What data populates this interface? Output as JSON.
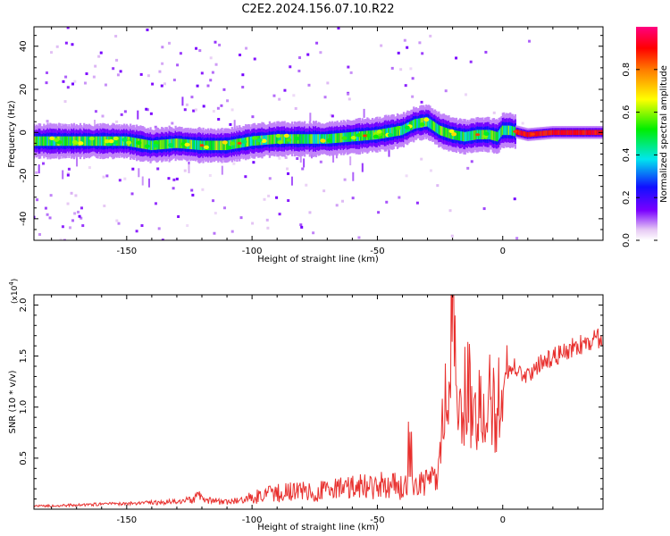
{
  "title": "C2E2.2024.156.07.10.R22",
  "colors": {
    "snr_line": "#e8302e",
    "axis": "#000000",
    "background": "#ffffff"
  },
  "chart_data": [
    {
      "type": "heatmap",
      "xlabel": "Height of straight line (km)",
      "ylabel": "Frequency (Hz)",
      "xlim": [
        -187,
        40
      ],
      "ylim": [
        -50,
        49
      ],
      "x_ticks": [
        -150,
        -100,
        -50,
        0
      ],
      "x_tick_labels": [
        "-150",
        "-100",
        "-50",
        "0"
      ],
      "y_ticks": [
        -40,
        -20,
        0,
        20,
        40
      ],
      "y_tick_labels": [
        "-40",
        "-20",
        "0",
        "20",
        "40"
      ],
      "colorbar": {
        "label": "Normalized spectral amplitude",
        "range": [
          0,
          1
        ],
        "ticks": [
          0.0,
          0.2,
          0.4,
          0.6,
          0.8
        ],
        "tick_labels": [
          "0.0",
          "0.2",
          "0.4",
          "0.6",
          "0.8"
        ],
        "colormap": "rainbow (white-purple-blue-cyan-green-yellow-red-magenta)"
      },
      "ridge": {
        "x": [
          -187,
          -170,
          -150,
          -140,
          -130,
          -120,
          -110,
          -100,
          -90,
          -80,
          -70,
          -60,
          -50,
          -40,
          -35,
          -30,
          -25,
          -20,
          -15,
          -10,
          -5,
          -2,
          0,
          3,
          10,
          20,
          30,
          40
        ],
        "y": [
          -4,
          -4,
          -4,
          -6,
          -5,
          -6,
          -6,
          -4,
          -3,
          -3,
          -3,
          -2,
          -1,
          1,
          4,
          5,
          1,
          -1,
          -2,
          -1,
          -1,
          -2,
          1,
          1,
          -1,
          0,
          0,
          0
        ]
      }
    },
    {
      "type": "line",
      "xlabel": "Height of straight line (km)",
      "ylabel": "SNR (10 * v/v)",
      "y_multiplier": "(x10",
      "y_multiplier_exp": "4",
      "y_multiplier_close": ")",
      "xlim": [
        -187,
        40
      ],
      "ylim": [
        0,
        21000
      ],
      "x_ticks": [
        -150,
        -100,
        -50,
        0
      ],
      "x_tick_labels": [
        "-150",
        "-100",
        "-50",
        "0"
      ],
      "y_ticks": [
        5000,
        10000,
        15000,
        20000
      ],
      "y_tick_labels": [
        "0.5",
        "1.0",
        "1.5",
        "2.0"
      ],
      "series": [
        {
          "x": [
            -187,
            -175,
            -165,
            -155,
            -145,
            -135,
            -128,
            -124,
            -121,
            -118,
            -110,
            -104,
            -100,
            -95,
            -89,
            -85,
            -80,
            -75,
            -70,
            -66,
            -62,
            -58,
            -55,
            -50,
            -45,
            -40,
            -35,
            -30,
            -26,
            -24,
            -22,
            -20,
            -18,
            -16,
            -14,
            -12,
            -10,
            -8,
            -6,
            -4,
            -2,
            0,
            2,
            5,
            8,
            12,
            16,
            20,
            25,
            30,
            35,
            40
          ],
          "y": [
            400,
            500,
            600,
            700,
            800,
            900,
            1100,
            1300,
            1900,
            1200,
            1100,
            1200,
            1800,
            2200,
            2700,
            2600,
            2900,
            2800,
            2900,
            3100,
            3200,
            3400,
            3600,
            3800,
            3700,
            3600,
            3900,
            4200,
            4800,
            9000,
            12000,
            21000,
            11000,
            13000,
            12000,
            11000,
            12000,
            14000,
            13000,
            12500,
            11000,
            13000,
            14000,
            15000,
            13500,
            14500,
            15500,
            15800,
            16500,
            17000,
            17500,
            17800
          ]
        }
      ]
    }
  ]
}
